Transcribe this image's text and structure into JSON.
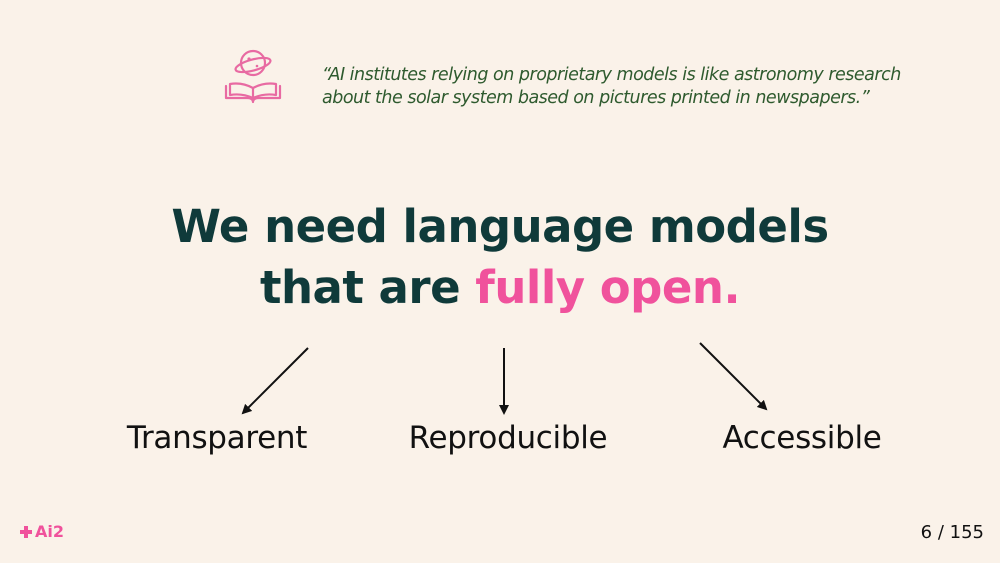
{
  "quote": {
    "line1": "“AI institutes relying on proprietary models is like astronomy research",
    "line2": "about the solar system based on pictures printed in newspapers.”",
    "icon": "planet-book-icon"
  },
  "headline": {
    "line1": "We need language models",
    "line2_prefix": "that are ",
    "line2_accent": "fully open."
  },
  "properties": {
    "transparent": "Transparent",
    "reproducible": "Reproducible",
    "accessible": "Accessible"
  },
  "footer": {
    "logo_text": "Ai2",
    "logo_icon": "ai2-logo-icon",
    "page_indicator": "6 / 155"
  },
  "colors": {
    "background": "#FAF2E9",
    "accent": "#F0529C",
    "headline": "#0F3A3A",
    "quote": "#2E5A2E"
  }
}
